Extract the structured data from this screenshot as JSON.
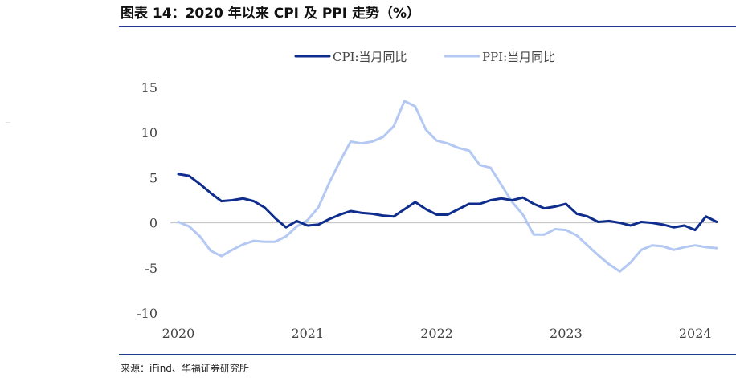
{
  "header": {
    "title": "图表 14：2020 年以来 CPI 及 PPI 走势（%）"
  },
  "footer": {
    "source": "来源：iFind、华福证券研究所"
  },
  "colors": {
    "cpi": "#0f2d8c",
    "ppi": "#b3c8f2",
    "rule": "#1f3a8f"
  },
  "chart_data": {
    "type": "line",
    "title": "",
    "xlabel": "",
    "ylabel": "",
    "ylim": [
      -10,
      15
    ],
    "y_ticks": [
      15,
      10,
      5,
      0,
      -5,
      -10
    ],
    "y_tick_labels": [
      "15",
      "10",
      "5",
      "0",
      "-5",
      "-10"
    ],
    "x_tick_labels": [
      "2020",
      "2021",
      "2022",
      "2023",
      "2024"
    ],
    "legend_position": "top",
    "grid": false,
    "x": [
      "2020-01",
      "2020-02",
      "2020-03",
      "2020-04",
      "2020-05",
      "2020-06",
      "2020-07",
      "2020-08",
      "2020-09",
      "2020-10",
      "2020-11",
      "2020-12",
      "2021-01",
      "2021-02",
      "2021-03",
      "2021-04",
      "2021-05",
      "2021-06",
      "2021-07",
      "2021-08",
      "2021-09",
      "2021-10",
      "2021-11",
      "2021-12",
      "2022-01",
      "2022-02",
      "2022-03",
      "2022-04",
      "2022-05",
      "2022-06",
      "2022-07",
      "2022-08",
      "2022-09",
      "2022-10",
      "2022-11",
      "2022-12",
      "2023-01",
      "2023-02",
      "2023-03",
      "2023-04",
      "2023-05",
      "2023-06",
      "2023-07",
      "2023-08",
      "2023-09",
      "2023-10",
      "2023-11",
      "2023-12",
      "2024-01",
      "2024-02",
      "2024-03"
    ],
    "series": [
      {
        "name": "CPI:当月同比",
        "color": "#0f2d8c",
        "values": [
          5.4,
          5.2,
          4.3,
          3.3,
          2.4,
          2.5,
          2.7,
          2.4,
          1.7,
          0.5,
          -0.5,
          0.2,
          -0.3,
          -0.2,
          0.4,
          0.9,
          1.3,
          1.1,
          1.0,
          0.8,
          0.7,
          1.5,
          2.3,
          1.5,
          0.9,
          0.9,
          1.5,
          2.1,
          2.1,
          2.5,
          2.7,
          2.5,
          2.8,
          2.1,
          1.6,
          1.8,
          2.1,
          1.0,
          0.7,
          0.1,
          0.2,
          0.0,
          -0.3,
          0.1,
          0.0,
          -0.2,
          -0.5,
          -0.3,
          -0.8,
          0.7,
          0.1
        ]
      },
      {
        "name": "PPI:当月同比",
        "color": "#b3c8f2",
        "values": [
          0.1,
          -0.4,
          -1.5,
          -3.1,
          -3.7,
          -3.0,
          -2.4,
          -2.0,
          -2.1,
          -2.1,
          -1.5,
          -0.4,
          0.3,
          1.7,
          4.4,
          6.8,
          9.0,
          8.8,
          9.0,
          9.5,
          10.7,
          13.5,
          12.9,
          10.3,
          9.1,
          8.8,
          8.3,
          8.0,
          6.4,
          6.1,
          4.2,
          2.3,
          0.9,
          -1.3,
          -1.3,
          -0.7,
          -0.8,
          -1.4,
          -2.5,
          -3.6,
          -4.6,
          -5.4,
          -4.4,
          -3.0,
          -2.5,
          -2.6,
          -3.0,
          -2.7,
          -2.5,
          -2.7,
          -2.8
        ]
      }
    ]
  }
}
